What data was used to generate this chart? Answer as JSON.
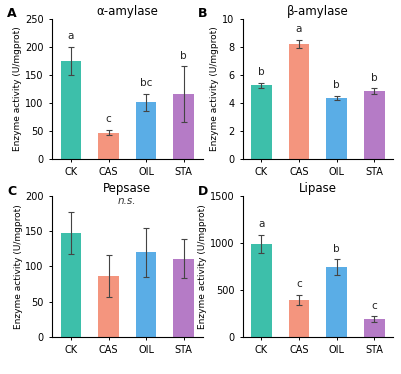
{
  "subplots": [
    {
      "label": "A",
      "title": "α-amylase",
      "ylabel": "Enzyme activity (U/mgprot)",
      "categories": [
        "CK",
        "CAS",
        "OIL",
        "STA"
      ],
      "values": [
        175,
        47,
        101,
        115
      ],
      "errors": [
        25,
        5,
        15,
        50
      ],
      "letters": [
        "a",
        "c",
        "bc",
        "b"
      ],
      "ylim": [
        0,
        250
      ],
      "yticks": [
        0,
        50,
        100,
        150,
        200,
        250
      ],
      "sig_text": null
    },
    {
      "label": "B",
      "title": "β-amylase",
      "ylabel": "Enzyme activity (U/mgprot)",
      "categories": [
        "CK",
        "CAS",
        "OIL",
        "STA"
      ],
      "values": [
        5.25,
        8.2,
        4.35,
        4.85
      ],
      "errors": [
        0.2,
        0.3,
        0.15,
        0.2
      ],
      "letters": [
        "b",
        "a",
        "b",
        "b"
      ],
      "ylim": [
        0,
        10
      ],
      "yticks": [
        0,
        2,
        4,
        6,
        8,
        10
      ],
      "sig_text": null
    },
    {
      "label": "C",
      "title": "Pepsase",
      "ylabel": "Enzyme activity (U/mgprot)",
      "categories": [
        "CK",
        "CAS",
        "OIL",
        "STA"
      ],
      "values": [
        148,
        87,
        120,
        111
      ],
      "errors": [
        30,
        30,
        35,
        28
      ],
      "letters": [
        null,
        null,
        null,
        null
      ],
      "ylim": [
        0,
        200
      ],
      "yticks": [
        0,
        50,
        100,
        150,
        200
      ],
      "sig_text": "n.s."
    },
    {
      "label": "D",
      "title": "Lipase",
      "ylabel": "Enzyme activity (U/mgprot)",
      "categories": [
        "CK",
        "CAS",
        "OIL",
        "STA"
      ],
      "values": [
        990,
        390,
        740,
        185
      ],
      "errors": [
        100,
        55,
        85,
        30
      ],
      "letters": [
        "a",
        "c",
        "b",
        "c"
      ],
      "ylim": [
        0,
        1500
      ],
      "yticks": [
        0,
        500,
        1000,
        1500
      ],
      "sig_text": null
    }
  ],
  "bar_colors": [
    "#3DBFAA",
    "#F4957E",
    "#5AADE6",
    "#B57BC6"
  ],
  "error_color": "#444444",
  "letter_fontsize": 7.5,
  "title_fontsize": 8.5,
  "ylabel_fontsize": 6.5,
  "tick_fontsize": 7,
  "panel_label_fontsize": 9,
  "background_color": "#ffffff"
}
